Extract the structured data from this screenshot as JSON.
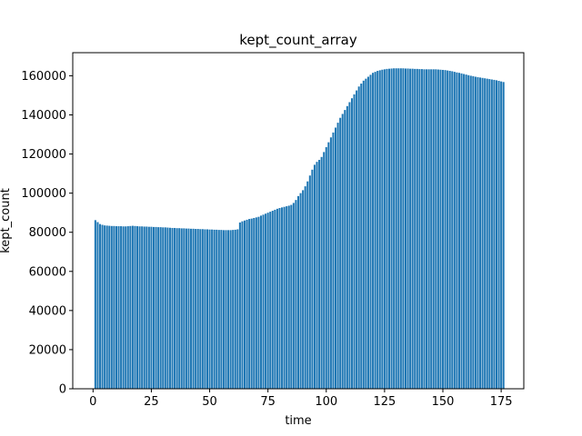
{
  "chart_data": {
    "type": "bar",
    "title": "kept_count_array",
    "xlabel": "time",
    "ylabel": "kept_count",
    "xlim": [
      -8.7,
      184.7
    ],
    "ylim": [
      0,
      171800
    ],
    "x_ticks": [
      0,
      25,
      50,
      75,
      100,
      125,
      150,
      175
    ],
    "y_ticks": [
      0,
      20000,
      40000,
      60000,
      80000,
      100000,
      120000,
      140000,
      160000
    ],
    "grid": false,
    "legend": "none",
    "bar_color": "#1f77b4",
    "x_start": 1,
    "values": [
      86200,
      85200,
      84200,
      83800,
      83500,
      83400,
      83300,
      83200,
      83200,
      83100,
      83100,
      83100,
      83000,
      83000,
      83100,
      83200,
      83300,
      83200,
      83100,
      83000,
      83000,
      82900,
      82900,
      82800,
      82800,
      82700,
      82700,
      82600,
      82600,
      82500,
      82500,
      82400,
      82300,
      82200,
      82200,
      82100,
      82100,
      82000,
      82000,
      81900,
      81900,
      81800,
      81800,
      81700,
      81700,
      81600,
      81600,
      81500,
      81500,
      81400,
      81400,
      81300,
      81300,
      81200,
      81200,
      81100,
      81100,
      81100,
      81100,
      81200,
      81300,
      81500,
      85000,
      85600,
      86000,
      86400,
      86800,
      87000,
      87300,
      87600,
      87900,
      88500,
      89000,
      89500,
      90000,
      90500,
      91000,
      91500,
      92000,
      92400,
      92700,
      93000,
      93300,
      93600,
      94000,
      95000,
      96500,
      98500,
      100000,
      101500,
      103500,
      106000,
      109000,
      112000,
      114500,
      116000,
      117000,
      118500,
      121000,
      123500,
      126000,
      128500,
      131000,
      133500,
      136000,
      138500,
      140500,
      142500,
      144500,
      146500,
      148500,
      150500,
      152500,
      154500,
      156000,
      157500,
      158500,
      159500,
      160500,
      161500,
      162000,
      162500,
      162800,
      163100,
      163300,
      163500,
      163600,
      163700,
      163800,
      163800,
      163800,
      163800,
      163800,
      163700,
      163700,
      163600,
      163600,
      163500,
      163500,
      163400,
      163400,
      163300,
      163300,
      163300,
      163300,
      163300,
      163300,
      163200,
      163100,
      163000,
      162900,
      162700,
      162500,
      162300,
      162000,
      161700,
      161500,
      161200,
      160900,
      160600,
      160300,
      160000,
      159800,
      159500,
      159300,
      159100,
      158900,
      158700,
      158500,
      158300,
      158100,
      157900,
      157700,
      157400,
      157100,
      156800
    ]
  }
}
